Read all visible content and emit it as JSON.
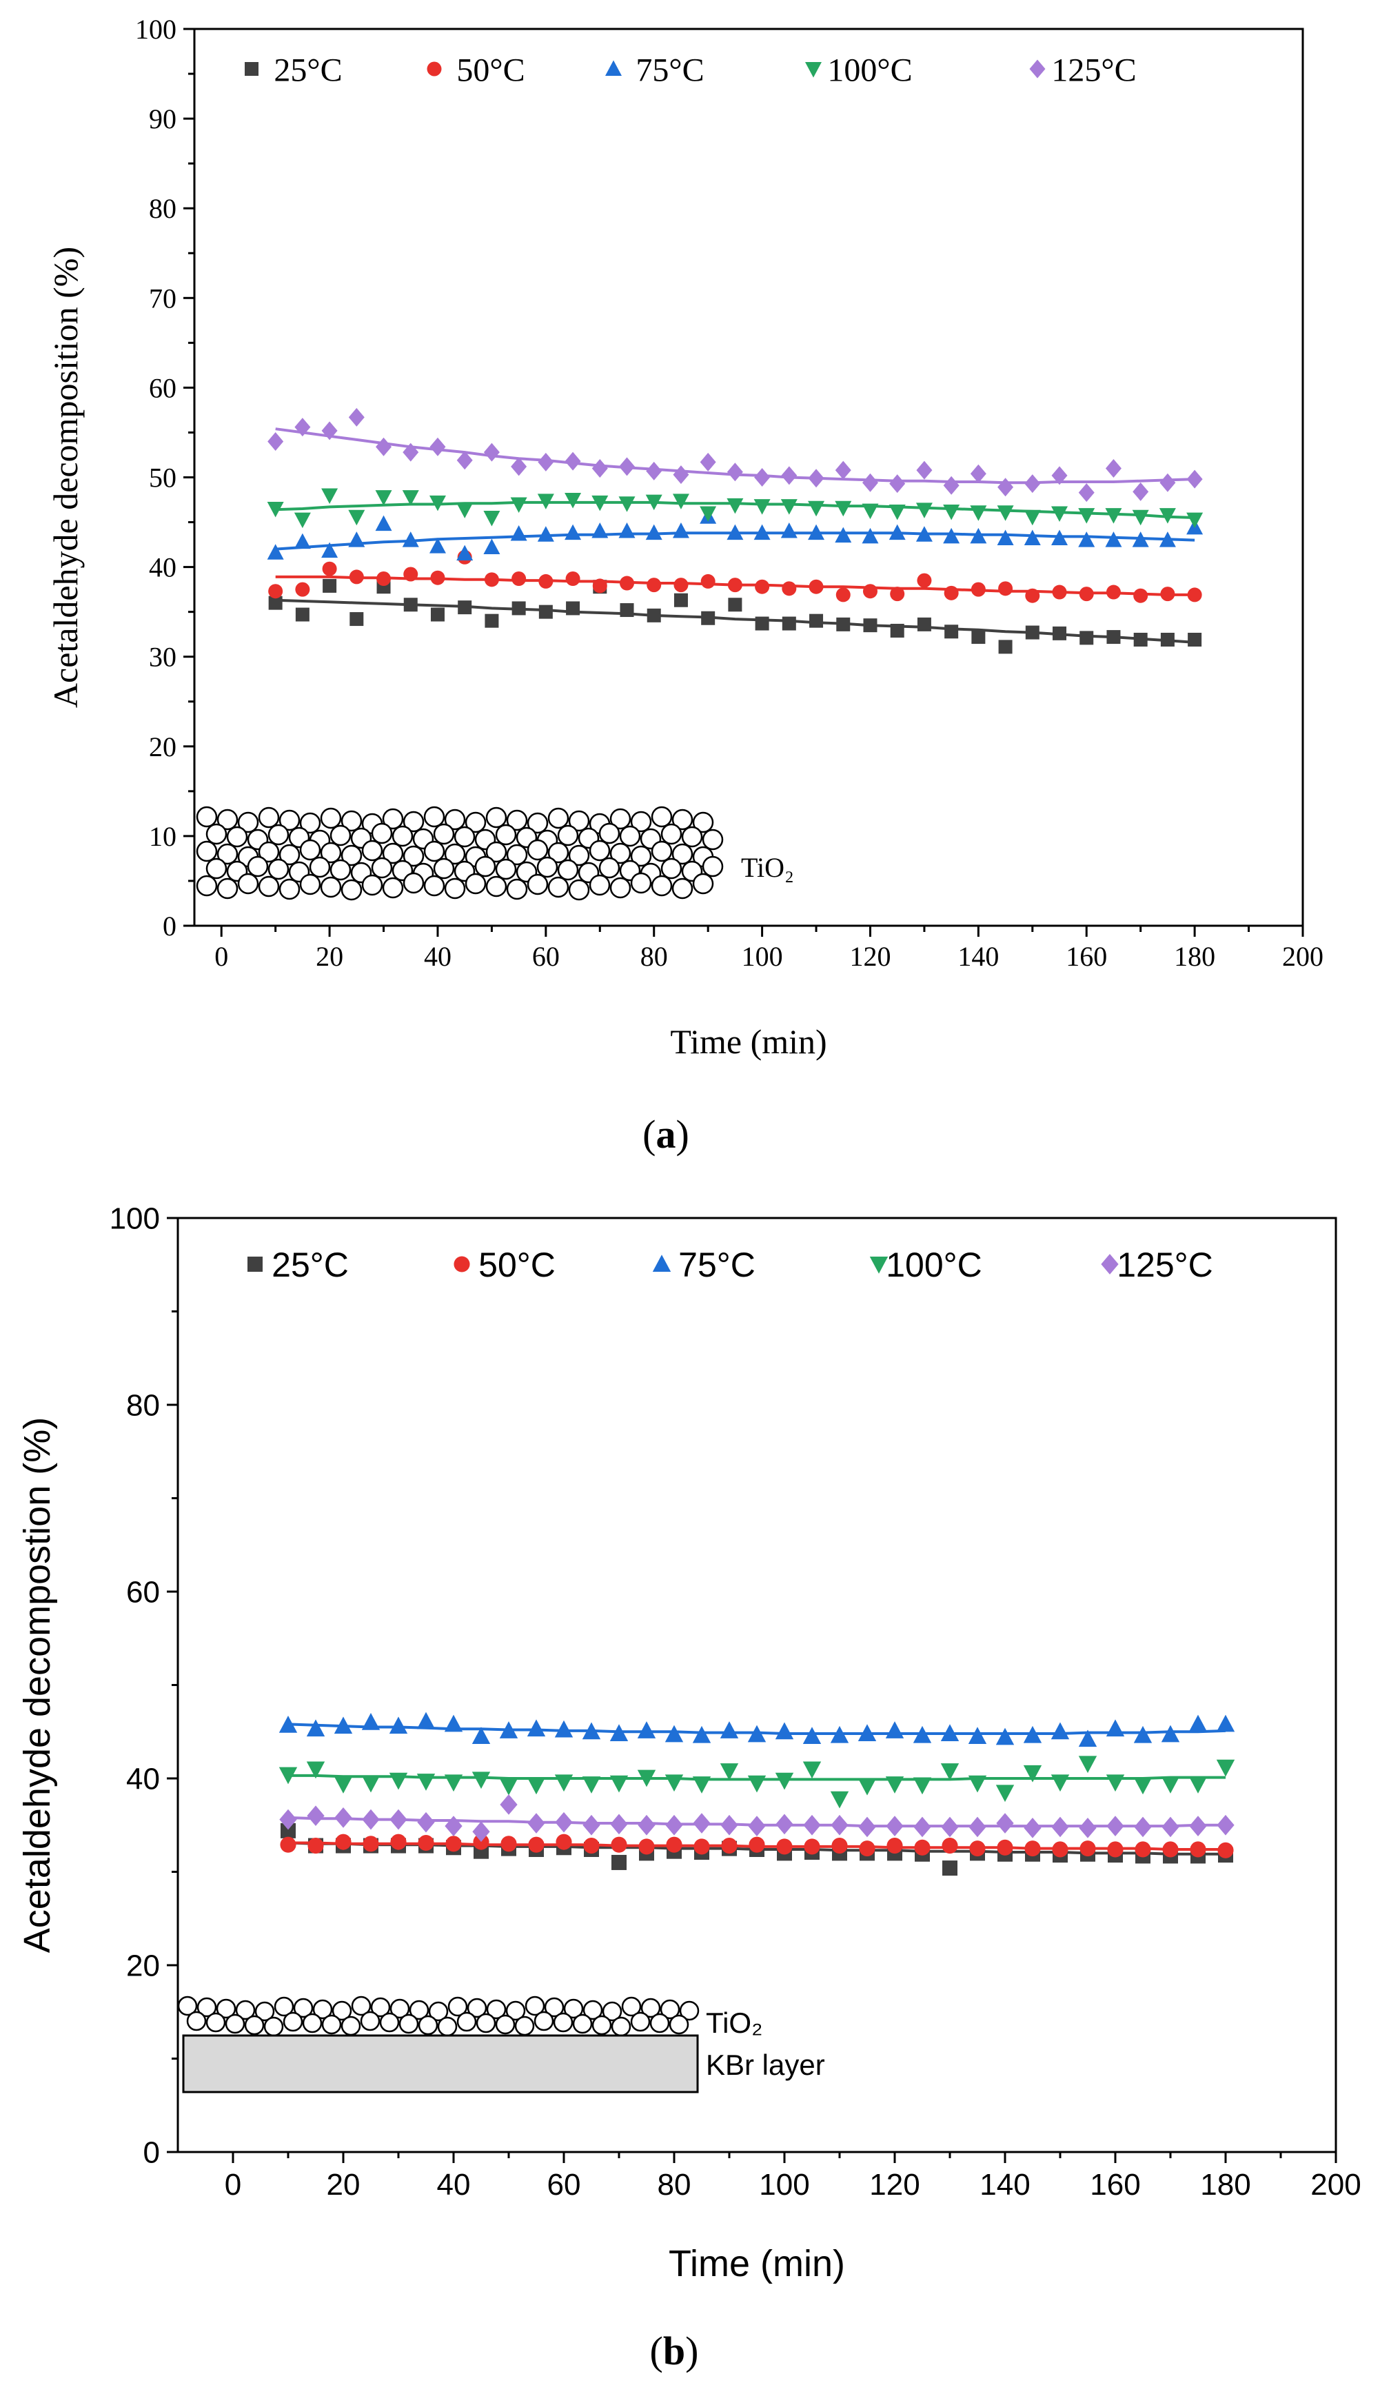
{
  "chart_data": [
    {
      "panel_label": "a",
      "type": "scatter",
      "font": "serif",
      "title": "",
      "xlabel": "Time (min)",
      "ylabel": "Acetaldehyde decomposition (%)",
      "xlim": [
        -5,
        200
      ],
      "ylim": [
        0,
        100
      ],
      "xticks": [
        0,
        20,
        40,
        60,
        80,
        100,
        120,
        140,
        160,
        180,
        200
      ],
      "yticks": [
        0,
        10,
        20,
        30,
        40,
        50,
        60,
        70,
        80,
        90,
        100
      ],
      "x": [
        10,
        15,
        20,
        25,
        30,
        35,
        40,
        45,
        50,
        55,
        60,
        65,
        70,
        75,
        80,
        85,
        90,
        95,
        100,
        105,
        110,
        115,
        120,
        125,
        130,
        135,
        140,
        145,
        150,
        155,
        160,
        165,
        170,
        175,
        180
      ],
      "legend_location": "top",
      "series": [
        {
          "name": "25°C",
          "marker": "square",
          "color": "#404040",
          "values": [
            36.0,
            34.7,
            37.9,
            34.2,
            37.8,
            35.8,
            34.7,
            35.5,
            34.0,
            35.4,
            35.0,
            35.4,
            37.8,
            35.2,
            34.6,
            36.3,
            34.3,
            35.8,
            33.7,
            33.7,
            34.0,
            33.6,
            33.5,
            32.9,
            33.6,
            32.8,
            32.2,
            31.1,
            32.7,
            32.6,
            32.1,
            32.2,
            31.9,
            31.9,
            31.9
          ],
          "fit": [
            36.3,
            36.2,
            36.1,
            36.0,
            35.9,
            35.8,
            35.7,
            35.6,
            35.4,
            35.3,
            35.2,
            35.0,
            34.9,
            34.8,
            34.6,
            34.5,
            34.4,
            34.2,
            34.1,
            34.0,
            33.8,
            33.7,
            33.5,
            33.4,
            33.3,
            33.1,
            33.0,
            32.8,
            32.7,
            32.5,
            32.3,
            32.2,
            32.0,
            31.8,
            31.6
          ]
        },
        {
          "name": "50°C",
          "marker": "circle",
          "color": "#e8302b",
          "values": [
            37.3,
            37.5,
            39.8,
            38.9,
            38.7,
            39.2,
            38.8,
            41.1,
            38.6,
            38.7,
            38.4,
            38.7,
            37.9,
            38.2,
            38.0,
            38.0,
            38.4,
            38.0,
            37.8,
            37.6,
            37.8,
            36.9,
            37.3,
            37.0,
            38.5,
            37.1,
            37.5,
            37.6,
            36.8,
            37.2,
            37.0,
            37.2,
            36.8,
            37.0,
            36.9
          ],
          "fit": [
            38.9,
            38.9,
            38.9,
            38.8,
            38.8,
            38.7,
            38.7,
            38.6,
            38.6,
            38.5,
            38.5,
            38.4,
            38.4,
            38.3,
            38.2,
            38.2,
            38.1,
            38.0,
            38.0,
            37.9,
            37.8,
            37.8,
            37.7,
            37.6,
            37.6,
            37.5,
            37.4,
            37.3,
            37.3,
            37.2,
            37.1,
            37.1,
            37.0,
            36.9,
            36.9
          ]
        },
        {
          "name": "75°C",
          "marker": "triangle-up",
          "color": "#1f6fd6",
          "values": [
            41.6,
            42.8,
            41.8,
            43.0,
            44.8,
            43.0,
            42.3,
            41.5,
            42.2,
            43.7,
            43.6,
            43.8,
            44.0,
            44.0,
            43.8,
            44.0,
            45.6,
            43.8,
            43.8,
            44.0,
            43.8,
            43.5,
            43.4,
            43.8,
            43.6,
            43.4,
            43.4,
            43.2,
            43.2,
            43.2,
            43.0,
            43.0,
            43.0,
            43.0,
            44.4
          ],
          "fit": [
            42.0,
            42.2,
            42.4,
            42.6,
            42.8,
            42.9,
            43.1,
            43.2,
            43.3,
            43.4,
            43.5,
            43.6,
            43.6,
            43.7,
            43.7,
            43.8,
            43.8,
            43.8,
            43.8,
            43.8,
            43.8,
            43.8,
            43.8,
            43.8,
            43.7,
            43.7,
            43.6,
            43.6,
            43.5,
            43.4,
            43.4,
            43.3,
            43.2,
            43.1,
            43.0
          ]
        },
        {
          "name": "100°C",
          "marker": "triangle-down",
          "color": "#26a660",
          "values": [
            46.5,
            45.3,
            48.0,
            45.6,
            47.8,
            47.8,
            47.2,
            46.4,
            45.5,
            47.0,
            47.4,
            47.5,
            47.2,
            47.1,
            47.3,
            47.4,
            46.0,
            46.9,
            46.8,
            46.8,
            46.6,
            46.6,
            46.3,
            46.2,
            46.4,
            46.2,
            46.1,
            46.1,
            45.6,
            46.0,
            45.8,
            45.8,
            45.6,
            45.8,
            45.3
          ],
          "fit": [
            46.4,
            46.5,
            46.7,
            46.8,
            46.9,
            47.0,
            47.0,
            47.1,
            47.1,
            47.2,
            47.2,
            47.2,
            47.2,
            47.2,
            47.2,
            47.1,
            47.1,
            47.1,
            47.0,
            47.0,
            46.9,
            46.8,
            46.8,
            46.7,
            46.6,
            46.5,
            46.4,
            46.3,
            46.2,
            46.1,
            46.0,
            45.9,
            45.8,
            45.6,
            45.5
          ]
        },
        {
          "name": "125°C",
          "marker": "diamond",
          "color": "#a77bd8",
          "values": [
            54.0,
            55.6,
            55.2,
            56.7,
            53.4,
            52.8,
            53.4,
            51.9,
            52.8,
            51.2,
            51.7,
            51.8,
            51.0,
            51.2,
            50.7,
            50.3,
            51.7,
            50.6,
            50.0,
            50.2,
            49.9,
            50.8,
            49.4,
            49.3,
            50.8,
            49.1,
            50.4,
            48.9,
            49.3,
            50.2,
            48.3,
            51.0,
            48.4,
            49.4,
            49.8
          ],
          "fit": [
            55.4,
            55.0,
            54.6,
            54.2,
            53.8,
            53.4,
            53.1,
            52.8,
            52.4,
            52.1,
            51.9,
            51.6,
            51.3,
            51.1,
            50.9,
            50.7,
            50.5,
            50.3,
            50.2,
            50.0,
            49.9,
            49.8,
            49.7,
            49.6,
            49.6,
            49.5,
            49.5,
            49.4,
            49.4,
            49.5,
            49.5,
            49.5,
            49.6,
            49.7,
            49.8
          ]
        }
      ],
      "inset_labels": [
        "TiO2"
      ]
    },
    {
      "panel_label": "b",
      "type": "scatter",
      "font": "sans",
      "title": "",
      "xlabel": "Time (min)",
      "ylabel": "Acetaldehyde decompostion (%)",
      "xlim": [
        -10,
        200
      ],
      "ylim": [
        0,
        100
      ],
      "xticks": [
        0,
        20,
        40,
        60,
        80,
        100,
        120,
        140,
        160,
        180,
        200
      ],
      "yticks": [
        0,
        20,
        40,
        60,
        80,
        100
      ],
      "x": [
        10,
        15,
        20,
        25,
        30,
        35,
        40,
        45,
        50,
        55,
        60,
        65,
        70,
        75,
        80,
        85,
        90,
        95,
        100,
        105,
        110,
        115,
        120,
        125,
        130,
        135,
        140,
        145,
        150,
        155,
        160,
        165,
        170,
        175,
        180
      ],
      "legend_location": "top",
      "series": [
        {
          "name": "25°C",
          "marker": "square",
          "color": "#404040",
          "values": [
            34.4,
            32.8,
            32.8,
            32.8,
            32.8,
            32.8,
            32.6,
            32.2,
            32.5,
            32.4,
            32.6,
            32.4,
            31.0,
            32.0,
            32.2,
            32.1,
            32.5,
            32.4,
            32.0,
            32.1,
            32.0,
            32.0,
            32.0,
            31.9,
            30.4,
            32.0,
            31.9,
            31.9,
            31.8,
            31.9,
            31.8,
            31.7,
            31.7,
            31.7,
            31.8
          ],
          "fit": [
            33.1,
            33.0,
            33.0,
            32.9,
            32.9,
            32.9,
            32.8,
            32.8,
            32.7,
            32.7,
            32.7,
            32.6,
            32.6,
            32.6,
            32.5,
            32.5,
            32.5,
            32.4,
            32.4,
            32.4,
            32.3,
            32.3,
            32.3,
            32.2,
            32.2,
            32.2,
            32.1,
            32.1,
            32.1,
            32.0,
            32.0,
            32.0,
            31.9,
            31.9,
            31.9
          ]
        },
        {
          "name": "50°C",
          "marker": "circle",
          "color": "#e8302b",
          "values": [
            32.9,
            32.8,
            33.2,
            33.0,
            33.2,
            33.1,
            33.0,
            33.2,
            33.0,
            32.9,
            33.2,
            32.8,
            32.9,
            32.7,
            32.9,
            32.7,
            32.8,
            32.9,
            32.7,
            32.7,
            32.8,
            32.5,
            32.8,
            32.6,
            32.8,
            32.5,
            32.6,
            32.5,
            32.4,
            32.5,
            32.4,
            32.4,
            32.4,
            32.4,
            32.3
          ],
          "fit": [
            33.1,
            33.1,
            33.0,
            33.0,
            33.0,
            33.0,
            33.0,
            32.9,
            32.9,
            32.9,
            32.9,
            32.9,
            32.8,
            32.8,
            32.8,
            32.8,
            32.8,
            32.7,
            32.7,
            32.7,
            32.7,
            32.7,
            32.6,
            32.6,
            32.6,
            32.6,
            32.6,
            32.5,
            32.5,
            32.5,
            32.5,
            32.5,
            32.4,
            32.4,
            32.4
          ]
        },
        {
          "name": "75°C",
          "marker": "triangle-up",
          "color": "#1f6fd6",
          "values": [
            45.7,
            45.3,
            45.6,
            46.0,
            45.6,
            46.1,
            45.8,
            44.5,
            45.1,
            45.3,
            45.2,
            45.0,
            44.8,
            45.1,
            44.7,
            44.6,
            45.1,
            44.7,
            45.0,
            44.5,
            44.6,
            44.8,
            45.1,
            44.6,
            44.8,
            44.5,
            44.4,
            44.6,
            45.0,
            44.2,
            45.3,
            44.6,
            44.7,
            45.8,
            45.8
          ],
          "fit": [
            45.8,
            45.7,
            45.6,
            45.5,
            45.5,
            45.4,
            45.3,
            45.3,
            45.2,
            45.2,
            45.1,
            45.1,
            45.0,
            45.0,
            45.0,
            44.9,
            44.9,
            44.9,
            44.8,
            44.8,
            44.8,
            44.8,
            44.8,
            44.8,
            44.8,
            44.8,
            44.8,
            44.8,
            44.8,
            44.9,
            44.9,
            44.9,
            45.0,
            45.0,
            45.1
          ]
        },
        {
          "name": "100°C",
          "marker": "triangle-down",
          "color": "#26a660",
          "values": [
            40.4,
            41.0,
            39.4,
            39.5,
            39.8,
            39.7,
            39.6,
            39.9,
            39.2,
            39.3,
            39.6,
            39.4,
            39.5,
            40.1,
            39.6,
            39.4,
            40.8,
            39.5,
            39.8,
            41.0,
            37.8,
            39.2,
            39.4,
            39.3,
            40.8,
            39.5,
            38.5,
            40.6,
            39.6,
            41.6,
            39.6,
            39.3,
            39.4,
            39.4,
            41.2
          ],
          "fit": [
            40.3,
            40.3,
            40.2,
            40.2,
            40.2,
            40.1,
            40.1,
            40.1,
            40.0,
            40.0,
            40.0,
            40.0,
            40.0,
            40.0,
            40.0,
            39.9,
            39.9,
            39.9,
            39.9,
            39.9,
            39.9,
            39.9,
            39.9,
            39.9,
            39.9,
            40.0,
            40.0,
            40.0,
            40.0,
            40.0,
            40.0,
            40.0,
            40.1,
            40.1,
            40.1
          ]
        },
        {
          "name": "125°C",
          "marker": "diamond",
          "color": "#a77bd8",
          "values": [
            35.6,
            36.0,
            35.8,
            35.6,
            35.6,
            35.3,
            34.9,
            34.3,
            37.2,
            35.2,
            35.3,
            35.0,
            35.1,
            35.0,
            35.0,
            35.2,
            35.0,
            34.9,
            35.1,
            35.0,
            35.0,
            34.8,
            34.9,
            34.8,
            34.8,
            34.8,
            35.2,
            34.7,
            34.8,
            34.7,
            34.9,
            34.8,
            34.8,
            34.9,
            35.0
          ],
          "fit": [
            35.8,
            35.7,
            35.7,
            35.6,
            35.6,
            35.5,
            35.5,
            35.4,
            35.4,
            35.3,
            35.3,
            35.2,
            35.2,
            35.2,
            35.1,
            35.1,
            35.1,
            35.0,
            35.0,
            35.0,
            35.0,
            34.9,
            34.9,
            34.9,
            34.9,
            34.9,
            34.9,
            34.9,
            34.9,
            34.9,
            34.9,
            34.9,
            34.9,
            35.0,
            35.0
          ]
        }
      ],
      "inset_labels": [
        "TiO2",
        "KBr layer"
      ]
    }
  ]
}
